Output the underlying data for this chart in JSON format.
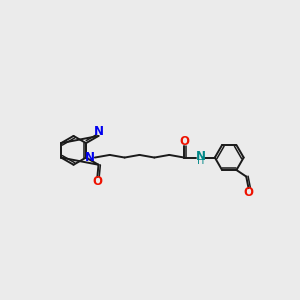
{
  "bg_color": "#ebebeb",
  "bond_color": "#1a1a1a",
  "N_color": "#0000ee",
  "O_color": "#ee1100",
  "NH_color": "#008888",
  "bond_lw": 1.4,
  "inner_lw": 1.1,
  "font_size": 8.5,
  "font_size_h": 7.0,
  "xlim": [
    0,
    10
  ],
  "ylim": [
    2,
    8
  ]
}
